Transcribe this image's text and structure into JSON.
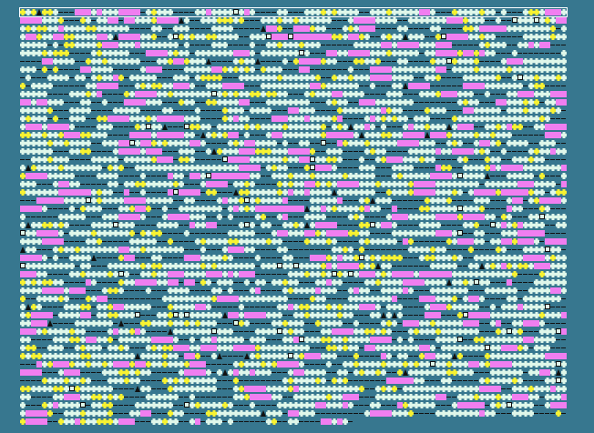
{
  "game": {
    "columns": 100,
    "rows": 51,
    "last_row_cells": 61,
    "selected_row": 0,
    "cell_types": [
      "plain",
      "yellow",
      "magenta",
      "dash",
      "box",
      "tri"
    ],
    "cell_type_weights": [
      0.62,
      0.13,
      0.09,
      0.13,
      0.015,
      0.015
    ]
  },
  "colors": {
    "background": "#37778f",
    "plain": "#dff7ea",
    "yellow": "#f7f232",
    "magenta": "#f07ef0",
    "marker": "#111111",
    "selection": "#ffffff"
  }
}
